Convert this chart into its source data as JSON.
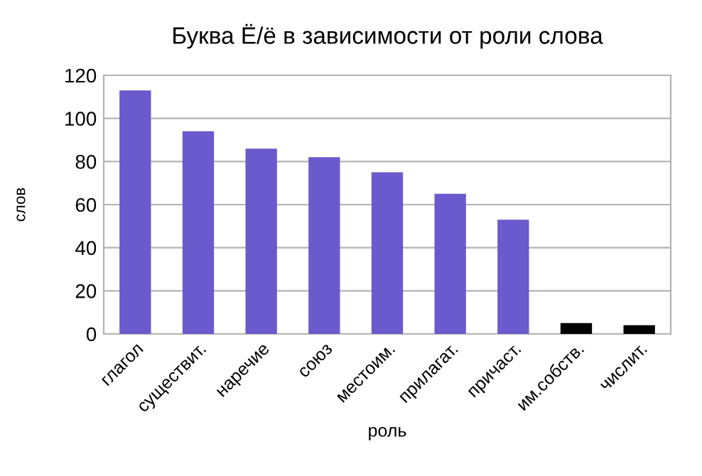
{
  "chart_data": {
    "type": "bar",
    "title": "Буква Ё/ё в зависимости от роли слова",
    "xlabel": "роль",
    "ylabel": "слов",
    "categories": [
      "глагол",
      "существит.",
      "наречие",
      "союз",
      "местоим.",
      "прилагат.",
      "причаст.",
      "им.собств.",
      "числит."
    ],
    "values": [
      113,
      94,
      86,
      82,
      75,
      65,
      53,
      5,
      4
    ],
    "colors": [
      "#6a5acd",
      "#6a5acd",
      "#6a5acd",
      "#6a5acd",
      "#6a5acd",
      "#6a5acd",
      "#6a5acd",
      "#000000",
      "#000000"
    ],
    "ylim": [
      0,
      120
    ],
    "yticks": [
      0,
      20,
      40,
      60,
      80,
      100,
      120
    ],
    "grid": "y"
  }
}
